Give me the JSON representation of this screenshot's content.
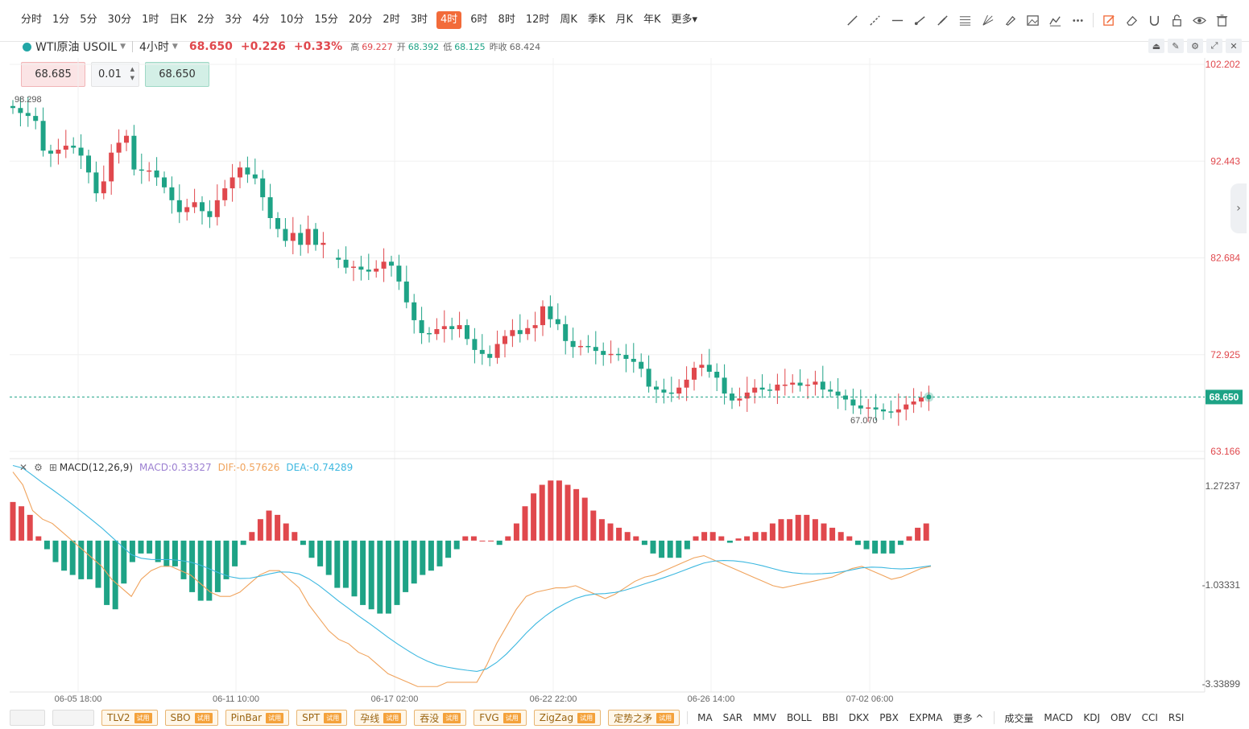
{
  "toolbar": {
    "periods": [
      {
        "label": "分时",
        "active": false
      },
      {
        "label": "1分",
        "active": false
      },
      {
        "label": "5分",
        "active": false
      },
      {
        "label": "30分",
        "active": false
      },
      {
        "label": "1时",
        "active": false
      },
      {
        "label": "日K",
        "active": false
      },
      {
        "label": "2分",
        "active": false
      },
      {
        "label": "3分",
        "active": false
      },
      {
        "label": "4分",
        "active": false
      },
      {
        "label": "10分",
        "active": false
      },
      {
        "label": "15分",
        "active": false
      },
      {
        "label": "20分",
        "active": false
      },
      {
        "label": "2时",
        "active": false
      },
      {
        "label": "3时",
        "active": false
      },
      {
        "label": "4时",
        "active": true
      },
      {
        "label": "6时",
        "active": false
      },
      {
        "label": "8时",
        "active": false
      },
      {
        "label": "12时",
        "active": false
      },
      {
        "label": "周K",
        "active": false
      },
      {
        "label": "季K",
        "active": false
      },
      {
        "label": "月K",
        "active": false
      },
      {
        "label": "年K",
        "active": false
      },
      {
        "label": "更多▾",
        "active": false
      }
    ],
    "draw_tools": [
      "trend-line-icon",
      "ray-line-icon",
      "horizontal-line-icon",
      "segment-icon",
      "parallel-icon",
      "fibonacci-icon",
      "gann-fan-icon",
      "brush-icon",
      "picture-icon",
      "pattern-icon",
      "more-icon",
      "edit-icon",
      "eraser-icon",
      "magnet-icon",
      "lock-icon",
      "eye-icon",
      "trash-icon"
    ]
  },
  "header": {
    "symbol": "WTI原油 USOIL",
    "resolution": "4小时",
    "last_price": "68.650",
    "change": "+0.226",
    "change_pct": "+0.33%",
    "high_label": "高",
    "high": "69.227",
    "open_label": "开",
    "open": "68.392",
    "low_label": "低",
    "low": "68.125",
    "prev_close_label": "昨收",
    "prev_close": "68.424"
  },
  "trade": {
    "sell_price": "68.685",
    "quantity": "0.01",
    "buy_price": "68.650"
  },
  "chart_data": {
    "type": "candlestick",
    "price_axis_ticks": [
      "102.202",
      "92.443",
      "82.684",
      "72.925",
      "63.166"
    ],
    "current_price_tag": "68.650",
    "high_annotation": "98.298",
    "low_annotation": "67.070",
    "time_axis_labels": [
      "06-05 18:00",
      "06-11 10:00",
      "06-17 02:00",
      "06-22 22:00",
      "06-26 14:00",
      "07-02 06:00"
    ],
    "closes": [
      97.8,
      97.3,
      97.0,
      96.5,
      93.5,
      93.2,
      93.6,
      94.0,
      93.8,
      93.0,
      91.3,
      89.2,
      90.4,
      93.3,
      94.3,
      95.0,
      91.6,
      91.5,
      91.5,
      90.8,
      89.8,
      88.5,
      87.3,
      87.8,
      88.3,
      87.4,
      86.8,
      88.5,
      89.7,
      90.8,
      91.8,
      91.1,
      90.7,
      88.8,
      86.7,
      85.6,
      84.4,
      85.2,
      84.0,
      85.6,
      84.0,
      84.2,
      null,
      82.5,
      81.7,
      81.8,
      81.5,
      81.3,
      81.6,
      82.3,
      81.9,
      80.3,
      78.2,
      76.4,
      75.1,
      75.0,
      75.5,
      75.8,
      75.5,
      75.9,
      74.5,
      73.4,
      73.0,
      72.6,
      74.0,
      74.8,
      75.4,
      75.0,
      75.6,
      75.9,
      77.8,
      76.5,
      76.0,
      74.3,
      73.7,
      73.8,
      73.7,
      73.3,
      72.9,
      73.0,
      72.9,
      72.5,
      72.2,
      71.5,
      69.7,
      69.4,
      69.1,
      69.0,
      69.6,
      70.4,
      71.6,
      71.9,
      71.2,
      70.6,
      69.0,
      68.3,
      68.5,
      69.1,
      69.6,
      69.4,
      69.3,
      69.9,
      69.9,
      70.1,
      69.8,
      69.9,
      70.2,
      69.4,
      69.2,
      68.8,
      68.4,
      67.8,
      67.5,
      67.6,
      67.4,
      67.2,
      67.1,
      67.4,
      67.9,
      68.2,
      68.6,
      68.7
    ],
    "macd": {
      "label": "MACD(12,26,9)",
      "macd_value": "MACD:0.33327",
      "dif_value": "DIF:-0.57626",
      "dea_value": "DEA:-0.74289",
      "axis_ticks": [
        "1.27237",
        "-1.03331",
        "-3.33899"
      ],
      "hist": [
        0.9,
        0.8,
        0.6,
        0.1,
        -0.2,
        -0.5,
        -0.7,
        -0.8,
        -0.9,
        -0.9,
        -1.1,
        -1.5,
        -1.6,
        -1.0,
        -0.5,
        -0.3,
        -0.3,
        -0.5,
        -0.6,
        -0.6,
        -0.9,
        -1.2,
        -1.4,
        -1.4,
        -1.2,
        -0.9,
        -0.6,
        -0.1,
        0.2,
        0.5,
        0.7,
        0.6,
        0.4,
        0.2,
        -0.1,
        -0.4,
        -0.6,
        -0.8,
        -1.1,
        -1.1,
        -1.3,
        -1.5,
        -1.6,
        -1.7,
        -1.7,
        -1.5,
        -1.2,
        -1.0,
        -0.8,
        -0.7,
        -0.6,
        -0.4,
        -0.2,
        0.1,
        0.1,
        0.0,
        0.0,
        -0.1,
        0.1,
        0.4,
        0.8,
        1.1,
        1.3,
        1.4,
        1.4,
        1.3,
        1.2,
        1.0,
        0.7,
        0.5,
        0.4,
        0.3,
        0.2,
        0.1,
        -0.1,
        -0.3,
        -0.4,
        -0.4,
        -0.4,
        -0.2,
        0.1,
        0.2,
        0.2,
        0.1,
        -0.05,
        0.05,
        0.1,
        0.2,
        0.2,
        0.4,
        0.5,
        0.5,
        0.6,
        0.6,
        0.5,
        0.4,
        0.3,
        0.2,
        0.1,
        -0.1,
        -0.2,
        -0.3,
        -0.3,
        -0.3,
        -0.1,
        0.1,
        0.3,
        0.4,
        0.5,
        0.5
      ],
      "dif": [
        1.6,
        1.3,
        0.7,
        0.5,
        0.4,
        0.2,
        0.0,
        -0.2,
        -0.4,
        -0.6,
        -0.9,
        -1.1,
        -1.3,
        -0.9,
        -0.7,
        -0.6,
        -0.6,
        -0.7,
        -0.8,
        -1.0,
        -1.2,
        -1.3,
        -1.3,
        -1.2,
        -1.0,
        -0.8,
        -0.7,
        -0.7,
        -0.9,
        -1.1,
        -1.5,
        -1.8,
        -2.1,
        -2.3,
        -2.4,
        -2.6,
        -2.7,
        -2.9,
        -3.1,
        -3.2,
        -3.3,
        -3.4,
        -3.4,
        -3.4,
        -3.3,
        -3.3,
        -3.3,
        -3.3,
        -2.9,
        -2.4,
        -2.0,
        -1.6,
        -1.3,
        -1.2,
        -1.15,
        -1.1,
        -1.1,
        -1.05,
        -1.15,
        -1.25,
        -1.35,
        -1.25,
        -1.1,
        -0.95,
        -0.85,
        -0.8,
        -0.7,
        -0.6,
        -0.5,
        -0.4,
        -0.35,
        -0.45,
        -0.55,
        -0.65,
        -0.75,
        -0.85,
        -0.95,
        -1.05,
        -1.1,
        -1.05,
        -1.0,
        -0.95,
        -0.9,
        -0.85,
        -0.75,
        -0.65,
        -0.6,
        -0.7,
        -0.8,
        -0.9,
        -0.85,
        -0.75,
        -0.65,
        -0.6
      ]
    }
  },
  "bottombar": {
    "boxes": [
      "",
      ""
    ],
    "trial_indicators": [
      "TLV2",
      "SBO",
      "PinBar",
      "SPT",
      "孕线",
      "吞没",
      "FVG",
      "ZigZag",
      "定势之矛"
    ],
    "trial_label": "试用",
    "main_indicators": [
      "MA",
      "SAR",
      "MMV",
      "BOLL",
      "BBI",
      "DKX",
      "PBX",
      "EXPMA",
      "更多 ^"
    ],
    "sub_indicators": [
      "成交量",
      "MACD",
      "KDJ",
      "OBV",
      "CCI",
      "RSI"
    ]
  },
  "colors": {
    "up": "#e0484d",
    "down": "#1ea386",
    "dif": "#3db8e0",
    "dea": "#f0a35c",
    "accent": "#f26b3a"
  }
}
